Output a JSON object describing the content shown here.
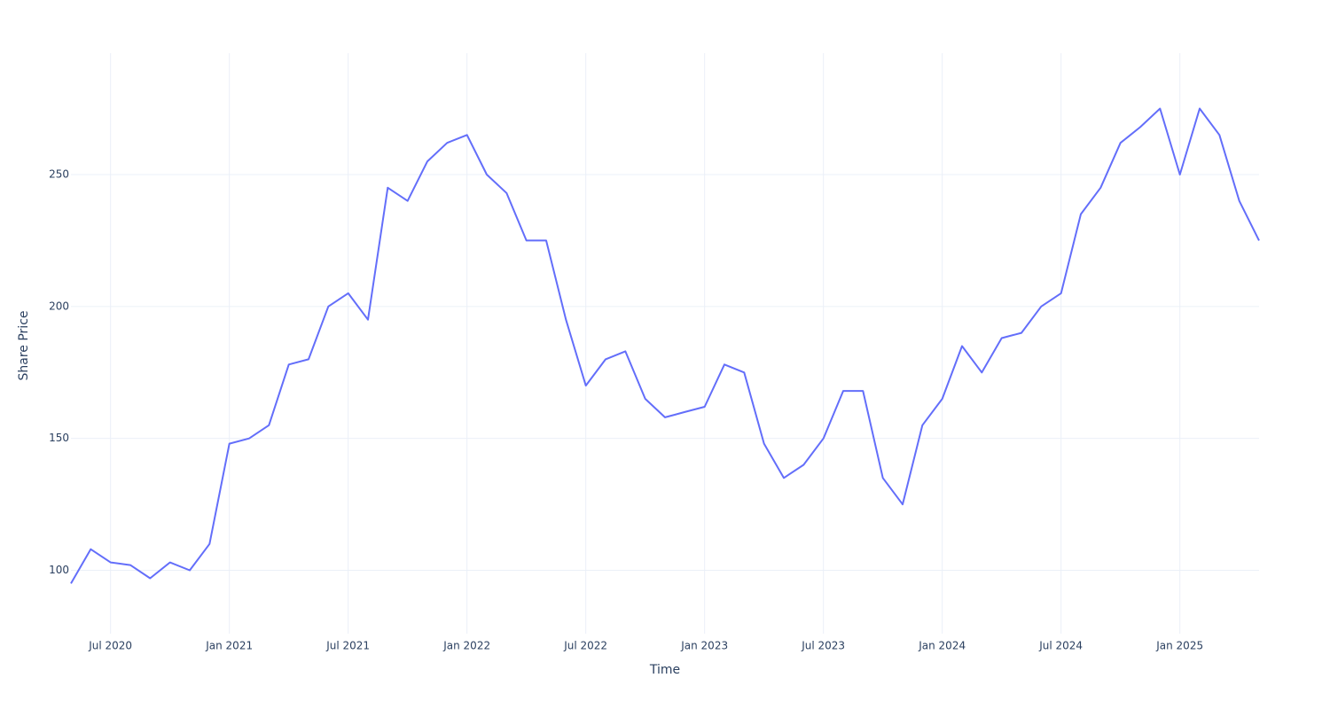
{
  "chart_data": {
    "type": "line",
    "xlabel": "Time",
    "ylabel": "Share Price",
    "x": [
      "2020-05",
      "2020-06",
      "2020-07",
      "2020-08",
      "2020-09",
      "2020-10",
      "2020-11",
      "2020-12",
      "2021-01",
      "2021-02",
      "2021-03",
      "2021-04",
      "2021-05",
      "2021-06",
      "2021-07",
      "2021-08",
      "2021-09",
      "2021-10",
      "2021-11",
      "2021-12",
      "2022-01",
      "2022-02",
      "2022-03",
      "2022-04",
      "2022-05",
      "2022-06",
      "2022-07",
      "2022-08",
      "2022-09",
      "2022-10",
      "2022-11",
      "2022-12",
      "2023-01",
      "2023-02",
      "2023-03",
      "2023-04",
      "2023-05",
      "2023-06",
      "2023-07",
      "2023-08",
      "2023-09",
      "2023-10",
      "2023-11",
      "2023-12",
      "2024-01",
      "2024-02",
      "2024-03",
      "2024-04",
      "2024-05",
      "2024-06",
      "2024-07",
      "2024-08",
      "2024-09",
      "2024-10",
      "2024-11",
      "2024-12",
      "2025-01",
      "2025-02",
      "2025-03",
      "2025-04",
      "2025-05"
    ],
    "series": [
      {
        "name": "Share Price",
        "color": "#636efa",
        "values": [
          95,
          108,
          103,
          102,
          97,
          103,
          100,
          110,
          148,
          150,
          155,
          178,
          180,
          200,
          205,
          195,
          245,
          240,
          255,
          262,
          265,
          250,
          243,
          225,
          225,
          195,
          170,
          180,
          183,
          165,
          158,
          160,
          162,
          178,
          175,
          148,
          135,
          140,
          150,
          168,
          168,
          135,
          125,
          155,
          165,
          185,
          175,
          188,
          190,
          200,
          205,
          235,
          245,
          262,
          268,
          275,
          250,
          275,
          265,
          240,
          225
        ]
      }
    ],
    "xlim": [
      "2020-05",
      "2025-05"
    ],
    "xticks": [
      {
        "value": "2020-07",
        "label": "Jul 2020"
      },
      {
        "value": "2021-01",
        "label": "Jan 2021"
      },
      {
        "value": "2021-07",
        "label": "Jul 2021"
      },
      {
        "value": "2022-01",
        "label": "Jan 2022"
      },
      {
        "value": "2022-07",
        "label": "Jul 2022"
      },
      {
        "value": "2023-01",
        "label": "Jan 2023"
      },
      {
        "value": "2023-07",
        "label": "Jul 2023"
      },
      {
        "value": "2024-01",
        "label": "Jan 2024"
      },
      {
        "value": "2024-07",
        "label": "Jul 2024"
      },
      {
        "value": "2025-01",
        "label": "Jan 2025"
      }
    ],
    "ylim": [
      76,
      296
    ],
    "yticks": [
      100,
      150,
      200,
      250
    ],
    "grid": true
  }
}
